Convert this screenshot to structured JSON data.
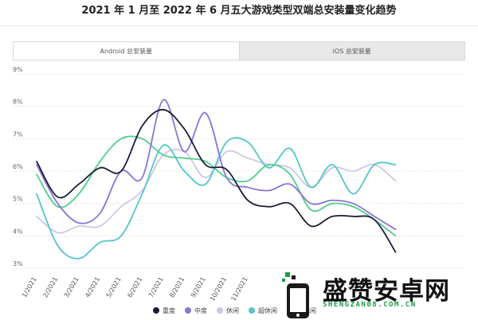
{
  "page": {
    "title": "2021 年 1 月至 2022 年 6 月五大游戏类型双端总安装量变化趋势"
  },
  "tabs": [
    {
      "label": "Android 总安装量",
      "active": true
    },
    {
      "label": "iOS 总安装量",
      "active": false
    }
  ],
  "watermark": {
    "text": "盛赞安卓网",
    "url": "SHENGZAN08.COM.CN"
  },
  "chart_data": {
    "type": "line",
    "title": "",
    "xlabel": "",
    "ylabel": "",
    "ylim": [
      3,
      9
    ],
    "y_ticks": [
      "3%",
      "4%",
      "5%",
      "6%",
      "7%",
      "8%",
      "9%"
    ],
    "y_tick_values": [
      3,
      4,
      5,
      6,
      7,
      8,
      9
    ],
    "grid": true,
    "legend_position": "bottom",
    "categories": [
      "1/2021",
      "2/2021",
      "3/2021",
      "4/2021",
      "5/2021",
      "6/2021",
      "7/2021",
      "8/2021",
      "9/2021",
      "10/2021",
      "11/2021",
      "12/2021",
      "1/2022",
      "2/2022",
      "3/2022",
      "4/2022",
      "5/2022",
      "6/2022"
    ],
    "x_tick_labels": [
      "1/2021",
      "2/2021",
      "3/2021",
      "4/2021",
      "5/2021",
      "6/2021",
      "7/2021",
      "8/2021",
      "9/2021",
      "10/2021",
      "11/2021"
    ],
    "series": [
      {
        "name": "重度",
        "color": "#1c1c3a",
        "values": [
          6.3,
          5.2,
          5.6,
          6.1,
          6.0,
          7.4,
          7.9,
          7.3,
          6.2,
          6.05,
          5.1,
          4.9,
          5.0,
          4.3,
          4.6,
          4.6,
          4.5,
          3.5
        ]
      },
      {
        "name": "中度",
        "color": "#8a74d6",
        "values": [
          6.2,
          5.0,
          4.4,
          4.7,
          6.0,
          5.8,
          8.2,
          6.6,
          7.8,
          5.8,
          5.5,
          5.4,
          5.6,
          5.0,
          5.1,
          5.0,
          4.6,
          4.2
        ]
      },
      {
        "name": "休闲",
        "color": "#cdc7e6",
        "values": [
          4.6,
          4.1,
          4.3,
          4.3,
          4.9,
          5.4,
          6.5,
          6.6,
          5.8,
          6.6,
          6.4,
          6.2,
          6.1,
          5.5,
          6.1,
          6.0,
          6.2,
          5.7
        ]
      },
      {
        "name": "超休闲",
        "color": "#52c6c8",
        "values": [
          5.3,
          3.7,
          3.3,
          3.8,
          4.0,
          5.3,
          6.8,
          6.0,
          5.6,
          6.9,
          6.9,
          6.1,
          6.7,
          5.5,
          6.2,
          5.3,
          6.2,
          6.2
        ]
      },
      {
        "name": "超休闲",
        "color": "#4fce8e",
        "values": [
          5.9,
          4.9,
          5.3,
          6.3,
          7.0,
          7.0,
          6.5,
          6.4,
          6.3,
          5.8,
          5.7,
          6.2,
          5.9,
          4.8,
          5.0,
          4.9,
          4.5,
          4.0
        ]
      }
    ]
  }
}
